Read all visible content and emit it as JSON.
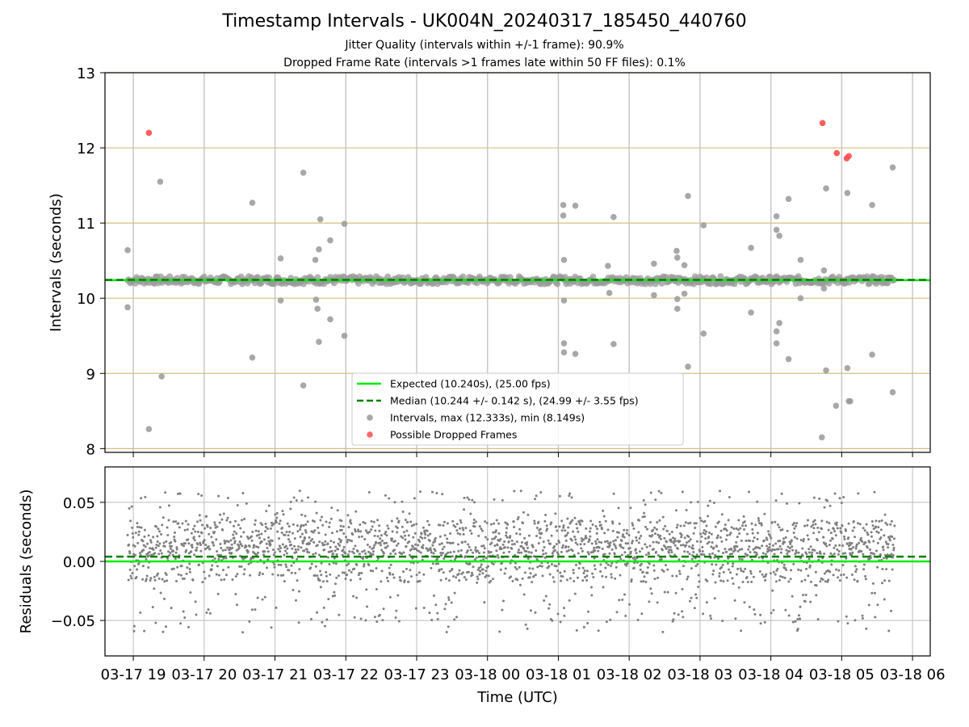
{
  "figure": {
    "title": "Timestamp Intervals - UK004N_20240317_185450_440760",
    "subtitle_line1": "Jitter Quality (intervals within +/-1 frame): 90.9%",
    "subtitle_line2": "Dropped Frame Rate (intervals >1 frames late within 50 FF files): 0.1%"
  },
  "colors": {
    "expected": "#00ee00",
    "median": "#007f00",
    "intervals": "#999999",
    "dropped": "#ff4d4d",
    "hgrid": "#d4bf80",
    "vgrid": "#c8c8c8",
    "residual_points": "#7f7f7f"
  },
  "chart_data": [
    {
      "type": "scatter",
      "panel": "top",
      "ylabel": "Intervals (seconds)",
      "ylim": [
        7.95,
        13.0
      ],
      "yticks": [
        8,
        9,
        10,
        11,
        12,
        13
      ],
      "xlim_hours_utc": [
        18.6,
        30.25
      ],
      "x_ticks": [
        "03-17 19",
        "03-17 20",
        "03-17 21",
        "03-17 22",
        "03-17 23",
        "03-18 00",
        "03-18 01",
        "03-18 02",
        "03-18 03",
        "03-18 04",
        "03-18 05",
        "03-18 06"
      ],
      "x_tick_hours": [
        19,
        20,
        21,
        22,
        23,
        24,
        25,
        26,
        27,
        28,
        29,
        30
      ],
      "grid": true,
      "legend_position": "lower center",
      "expected": {
        "value": 10.24,
        "label": "Expected (10.240s), (25.00 fps)"
      },
      "median": {
        "value": 10.244,
        "label": "Median (10.244 +/- 0.142 s), (24.99 +/- 3.55 fps)"
      },
      "baseline_range_hours": [
        18.92,
        29.75
      ],
      "intervals_label": "Intervals, max (12.333s), min (8.149s)",
      "dropped_label": "Possible Dropped Frames",
      "outliers": [
        [
          18.92,
          10.64
        ],
        [
          18.92,
          9.88
        ],
        [
          19.22,
          8.26
        ],
        [
          19.38,
          11.55
        ],
        [
          19.4,
          8.96
        ],
        [
          20.68,
          11.27
        ],
        [
          20.68,
          9.21
        ],
        [
          21.08,
          10.53
        ],
        [
          21.08,
          9.97
        ],
        [
          21.4,
          11.67
        ],
        [
          21.4,
          8.84
        ],
        [
          21.57,
          10.51
        ],
        [
          21.58,
          9.98
        ],
        [
          21.6,
          9.86
        ],
        [
          21.62,
          10.65
        ],
        [
          21.62,
          9.42
        ],
        [
          21.64,
          11.05
        ],
        [
          21.78,
          10.77
        ],
        [
          21.78,
          9.72
        ],
        [
          21.98,
          10.99
        ],
        [
          21.98,
          9.5
        ],
        [
          25.07,
          11.24
        ],
        [
          25.07,
          11.1
        ],
        [
          25.08,
          10.51
        ],
        [
          25.08,
          9.97
        ],
        [
          25.08,
          9.4
        ],
        [
          25.08,
          9.28
        ],
        [
          25.24,
          11.23
        ],
        [
          25.24,
          9.26
        ],
        [
          25.7,
          10.43
        ],
        [
          25.72,
          10.07
        ],
        [
          25.78,
          11.08
        ],
        [
          25.78,
          9.39
        ],
        [
          26.35,
          10.46
        ],
        [
          26.35,
          10.04
        ],
        [
          26.67,
          10.63
        ],
        [
          26.68,
          10.54
        ],
        [
          26.68,
          9.99
        ],
        [
          26.68,
          9.86
        ],
        [
          26.78,
          10.44
        ],
        [
          26.78,
          10.06
        ],
        [
          26.83,
          11.36
        ],
        [
          26.83,
          9.09
        ],
        [
          27.05,
          10.97
        ],
        [
          27.05,
          9.53
        ],
        [
          27.72,
          10.67
        ],
        [
          27.72,
          9.81
        ],
        [
          28.08,
          11.09
        ],
        [
          28.08,
          10.91
        ],
        [
          28.08,
          9.56
        ],
        [
          28.08,
          9.4
        ],
        [
          28.12,
          10.83
        ],
        [
          28.12,
          9.67
        ],
        [
          28.25,
          11.32
        ],
        [
          28.25,
          9.19
        ],
        [
          28.42,
          10.51
        ],
        [
          28.42,
          10.0
        ],
        [
          28.75,
          10.37
        ],
        [
          28.75,
          10.13
        ],
        [
          28.78,
          11.46
        ],
        [
          28.78,
          9.04
        ],
        [
          28.92,
          8.57
        ],
        [
          29.08,
          11.4
        ],
        [
          29.08,
          9.07
        ],
        [
          29.1,
          8.63
        ],
        [
          29.12,
          8.63
        ],
        [
          29.43,
          11.24
        ],
        [
          29.43,
          9.25
        ],
        [
          29.72,
          11.74
        ],
        [
          29.72,
          8.75
        ],
        [
          28.72,
          8.15
        ]
      ],
      "dropped": [
        [
          19.22,
          12.2
        ],
        [
          28.73,
          12.33
        ],
        [
          28.93,
          11.93
        ],
        [
          29.07,
          11.86
        ],
        [
          29.1,
          11.89
        ]
      ]
    },
    {
      "type": "scatter",
      "panel": "bottom",
      "xlabel": "Time (UTC)",
      "ylabel": "Residuals (seconds)",
      "ylim": [
        -0.08,
        0.08
      ],
      "yticks": [
        -0.05,
        0.0,
        0.05
      ],
      "ytick_labels": [
        "−0.05",
        "0.00",
        "0.05"
      ],
      "zero_line": 0.0,
      "median_offset": 0.004,
      "residual_range": [
        -0.067,
        0.072
      ],
      "note": "dense residual cloud, roughly uniform over 18.92–29.75 h, two bands near 0.00 and 0.02 s"
    }
  ]
}
